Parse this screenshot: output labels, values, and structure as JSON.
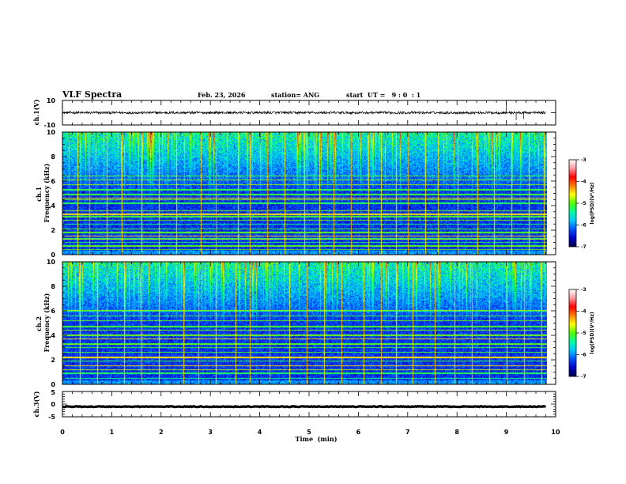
{
  "header": {
    "title": "VLF Spectra",
    "date": "Feb. 23, 2026",
    "station": "station= ANG",
    "start": "start  UT =   9 : 0  : 1"
  },
  "colors": {
    "background": "#ffffff",
    "axes": "#000000",
    "spectrogram_floor": "#000046",
    "colormap": [
      "#000046",
      "#0000c8",
      "#0050ff",
      "#00c8ff",
      "#00ffa0",
      "#50ff00",
      "#ffff00",
      "#ff8000",
      "#ff0000",
      "#ff9aa0",
      "#ffffff"
    ]
  },
  "chart_data": [
    {
      "type": "line",
      "panel": "ch1-waveform",
      "ylabel": "ch.1(V)",
      "ylim": [
        -10,
        10
      ],
      "yticks": [
        "10",
        "-10"
      ],
      "xlim": [
        0,
        10
      ],
      "baseline": 0,
      "noise_amplitude": 1.0,
      "spikes": [
        {
          "x": 9.0,
          "y": 10
        },
        {
          "x": 9.2,
          "y": -6
        },
        {
          "x": 9.35,
          "y": -5
        }
      ]
    },
    {
      "type": "heatmap",
      "panel": "ch1-spectrogram",
      "ylabel": "ch.1\nFrequency  (kHz)",
      "ylim": [
        0,
        10
      ],
      "yticks": [
        "0",
        "2",
        "4",
        "6",
        "8",
        "10"
      ],
      "xlim": [
        0,
        10
      ],
      "data_extent_min": 9.8,
      "colorbar": {
        "label": "log(PSD)(V²/Hz)",
        "range": [
          -7,
          -3
        ],
        "ticks": [
          "-3",
          "-4",
          "-5",
          "-6",
          "-7"
        ]
      },
      "persistent_lines_khz": [
        0.4,
        0.7,
        1.0,
        1.3,
        1.5,
        1.8,
        2.1,
        2.5,
        2.8,
        3.1,
        3.3,
        3.6,
        4.2,
        4.5,
        4.6,
        4.9,
        5.3,
        5.7,
        6.1,
        6.4
      ],
      "bright_lines_khz": [
        4.6,
        3.3,
        1.5
      ],
      "broadband_sferics_min": [
        0.3,
        0.55,
        0.9,
        1.2,
        1.6,
        1.95,
        2.3,
        2.8,
        3.1,
        3.55,
        3.8,
        4.15,
        4.5,
        4.9,
        5.2,
        5.5,
        5.85,
        6.2,
        6.45,
        6.75,
        7.0,
        7.35,
        7.6,
        8.0,
        8.4,
        8.75,
        9.1,
        9.45,
        9.75
      ]
    },
    {
      "type": "heatmap",
      "panel": "ch2-spectrogram",
      "ylabel": "ch.2\nFrequency  (kHz)",
      "ylim": [
        0,
        10
      ],
      "yticks": [
        "0",
        "2",
        "4",
        "6",
        "8",
        "10"
      ],
      "xlim": [
        0,
        10
      ],
      "data_extent_min": 9.8,
      "colorbar": {
        "label": "log(PSD)(V²/Hz)",
        "range": [
          -7,
          -3
        ],
        "ticks": [
          "-3",
          "-4",
          "-5",
          "-6",
          "-7"
        ]
      },
      "persistent_lines_khz": [
        0.5,
        0.9,
        1.2,
        1.5,
        1.9,
        2.2,
        2.6,
        3.0,
        3.3,
        3.7,
        4.0,
        4.4,
        4.7,
        5.2,
        5.6,
        6.0
      ],
      "bright_lines_khz": [
        1.5,
        2.2,
        3.7
      ],
      "broadband_sferics_min": [
        0.35,
        0.7,
        1.25,
        1.6,
        1.95,
        2.45,
        2.75,
        3.1,
        3.5,
        3.8,
        4.2,
        4.6,
        4.95,
        5.3,
        5.65,
        6.1,
        6.45,
        6.75,
        7.1,
        7.55,
        7.95,
        8.3,
        8.65,
        9.0,
        9.35,
        9.7
      ]
    },
    {
      "type": "line",
      "panel": "ch3-waveform",
      "ylabel": "ch.3(V)",
      "ylim": [
        -5,
        5
      ],
      "yticks": [
        "5",
        "0",
        "-5"
      ],
      "xlim": [
        0,
        10
      ],
      "baseline": -1.0,
      "noise_amplitude": 0.15,
      "xlabel": "Time  (min)",
      "xticks": [
        "0",
        "1",
        "2",
        "3",
        "4",
        "5",
        "6",
        "7",
        "8",
        "9",
        "10"
      ]
    }
  ]
}
